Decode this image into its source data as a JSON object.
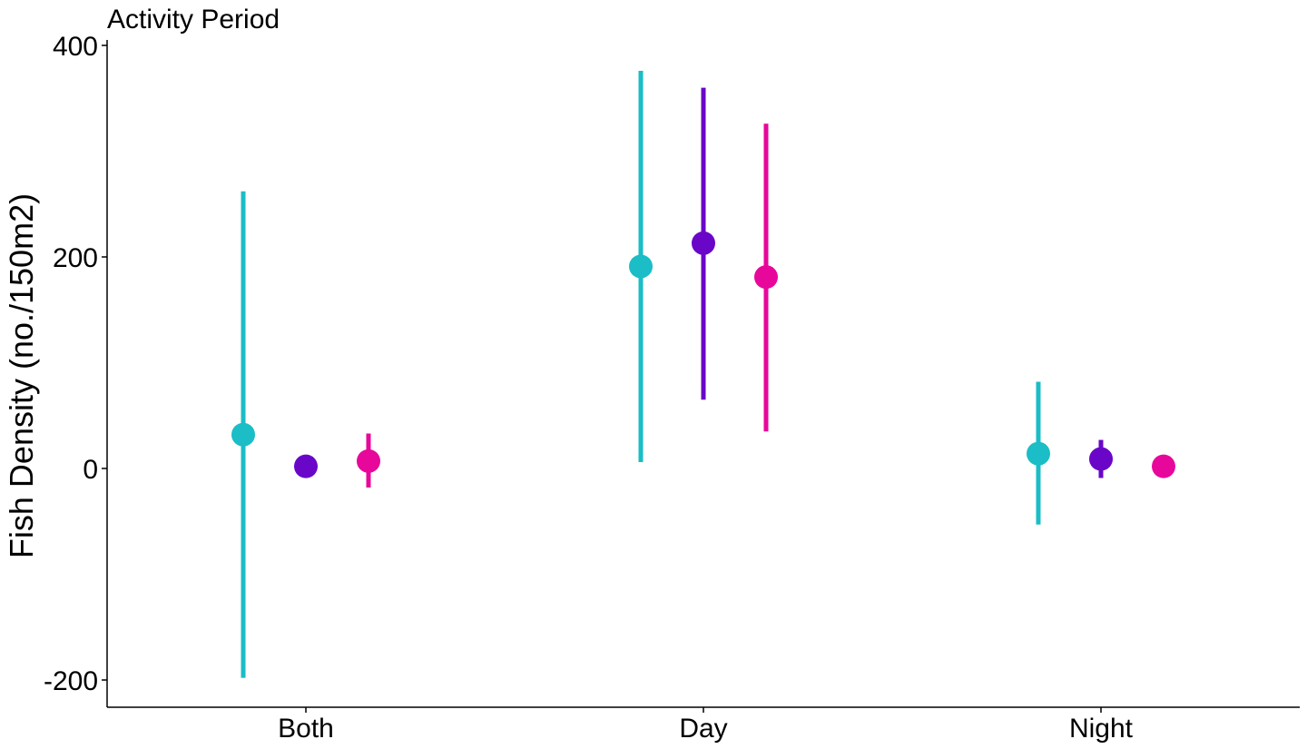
{
  "chart_data": {
    "type": "scatter",
    "title": "Activity Period",
    "xlabel": "",
    "ylabel": "Fish Density (no./150m2)",
    "categories": [
      "Both",
      "Day",
      "Night"
    ],
    "ylim": [
      -225,
      400
    ],
    "yticks": [
      -200,
      0,
      200,
      400
    ],
    "ytick_labels": [
      "-200",
      "0",
      "200",
      "400"
    ],
    "grid": false,
    "legend": "none",
    "series": [
      {
        "color": "#1bbdc6",
        "values": [
          32,
          191,
          14
        ],
        "lower": [
          -198,
          6,
          -53
        ],
        "upper": [
          262,
          376,
          82
        ]
      },
      {
        "color": "#6a06c8",
        "values": [
          2,
          213,
          9
        ],
        "lower": [
          2,
          65,
          -9
        ],
        "upper": [
          2,
          360,
          27
        ]
      },
      {
        "color": "#e8079b",
        "values": [
          7,
          181,
          2
        ],
        "lower": [
          -18,
          35,
          2
        ],
        "upper": [
          33,
          326,
          2
        ]
      }
    ]
  }
}
